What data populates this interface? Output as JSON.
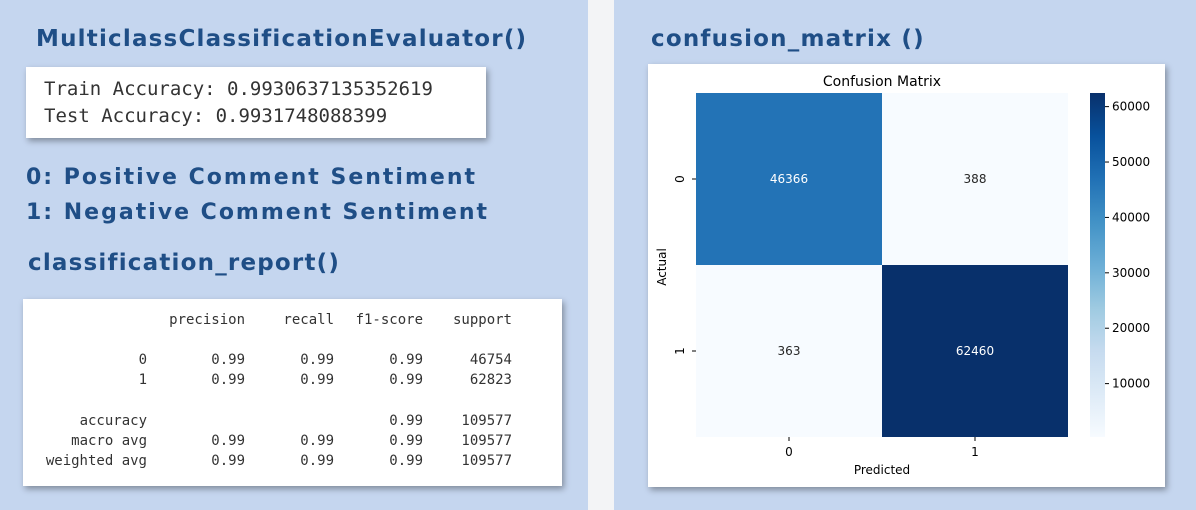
{
  "left": {
    "evaluator_heading": "MulticlassClassificationEvaluator()",
    "train_accuracy": "Train Accuracy: 0.9930637135352619",
    "test_accuracy": "Test Accuracy: 0.9931748088399",
    "label_0": "0: Positive Comment Sentiment",
    "label_1": "1: Negative Comment Sentiment",
    "report_heading": "classification_report()",
    "report": {
      "headers": [
        "precision",
        "recall",
        "f1-score",
        "support"
      ],
      "rows": [
        {
          "label": "0",
          "precision": "0.99",
          "recall": "0.99",
          "f1": "0.99",
          "support": "46754"
        },
        {
          "label": "1",
          "precision": "0.99",
          "recall": "0.99",
          "f1": "0.99",
          "support": "62823"
        },
        {
          "label": "accuracy",
          "precision": "",
          "recall": "",
          "f1": "0.99",
          "support": "109577"
        },
        {
          "label": "macro avg",
          "precision": "0.99",
          "recall": "0.99",
          "f1": "0.99",
          "support": "109577"
        },
        {
          "label": "weighted avg",
          "precision": "0.99",
          "recall": "0.99",
          "f1": "0.99",
          "support": "109577"
        }
      ]
    }
  },
  "right": {
    "heading": "confusion_matrix ()"
  },
  "chart_data": {
    "type": "heatmap",
    "title": "Confusion Matrix",
    "xlabel": "Predicted",
    "ylabel": "Actual",
    "x_categories": [
      "0",
      "1"
    ],
    "y_categories": [
      "0",
      "1"
    ],
    "values": [
      [
        46366,
        388
      ],
      [
        363,
        62460
      ]
    ],
    "cell_labels": [
      [
        "46366",
        "388"
      ],
      [
        "363",
        "62460"
      ]
    ],
    "colormap": "Blues",
    "colorbar": {
      "range": [
        363,
        62460
      ],
      "ticks": [
        10000,
        20000,
        30000,
        40000,
        50000,
        60000
      ],
      "tick_labels": [
        "10000",
        "20000",
        "30000",
        "40000",
        "50000",
        "60000"
      ]
    },
    "colors": {
      "low": "#f7fbff",
      "mid": "#2878b8",
      "high": "#08306b"
    }
  }
}
